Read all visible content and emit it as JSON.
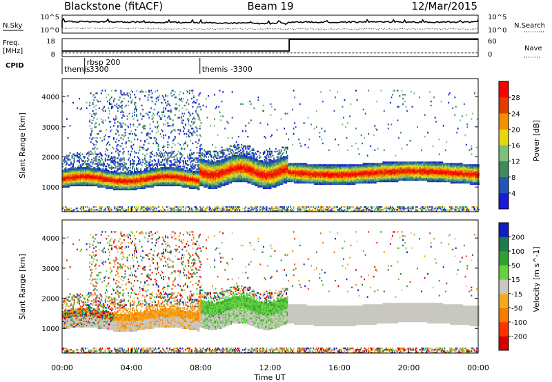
{
  "header": {
    "station": "Blackstone (fitACF)",
    "beam": "Beam 19",
    "date": "12/Mar/2015"
  },
  "nsky_panel": {
    "left_label": "N.Sky",
    "right_label": "N.Search",
    "left_ticks": [
      "10^5",
      "10^0"
    ],
    "right_ticks": [
      "10^5",
      "10^0"
    ]
  },
  "freq_panel": {
    "left_label_1": "Freq.",
    "left_label_2": "[MHz]",
    "right_label": "Nave",
    "left_ticks": [
      "18",
      "8"
    ],
    "right_ticks": [
      "60",
      "0"
    ],
    "freq_value_mhz": 10,
    "freq_change_hour": 13.1
  },
  "cpid": {
    "label": "CPID",
    "segments": [
      {
        "start_hour": 0.0,
        "end_hour": 1.3,
        "text": "themis"
      },
      {
        "start_hour": 1.3,
        "end_hour": 7.95,
        "text": "rbsp 200",
        "text2": "-3300"
      },
      {
        "start_hour": 7.95,
        "end_hour": 24.0,
        "text": "themis -3300"
      }
    ]
  },
  "chart_data": [
    {
      "type": "heatmap",
      "name": "power",
      "ylabel": "Slant Range [km]",
      "xlabel": "",
      "ylim": [
        180,
        4600
      ],
      "y_ticks": [
        1000,
        2000,
        3000,
        4000
      ],
      "colorbar_label": "Power [dB]",
      "colorbar_ticks": [
        "4",
        "8",
        "12",
        "16",
        "20",
        "24",
        "28"
      ],
      "colorbar_colors": [
        "#1a1ad8",
        "#2255b4",
        "#3e8a5a",
        "#7cc07c",
        "#e6d70e",
        "#f39000",
        "#e23c00",
        "#ff0000"
      ],
      "range_bands": [
        {
          "start_hour": 0.0,
          "end_hour": 7.9,
          "center_km": 1300,
          "width_km": 500
        },
        {
          "start_hour": 7.9,
          "end_hour": 13.0,
          "center_km": 1500,
          "width_km": 800
        },
        {
          "start_hour": 13.0,
          "end_hour": 24.0,
          "center_km": 1500,
          "width_km": 700
        }
      ]
    },
    {
      "type": "heatmap",
      "name": "velocity",
      "ylabel": "Slant Range [km]",
      "xlabel": "Time UT",
      "ylim": [
        180,
        4600
      ],
      "y_ticks": [
        1000,
        2000,
        3000,
        4000
      ],
      "x_ticks": [
        "00:00",
        "04:00",
        "08:00",
        "12:00",
        "16:00",
        "20:00",
        "00:00"
      ],
      "x_tick_hours": [
        0,
        4,
        8,
        12,
        16,
        20,
        24
      ],
      "colorbar_label": "Velocity [m s^-1]",
      "colorbar_ticks": [
        "200",
        "100",
        "50",
        "15",
        "-15",
        "-50",
        "-100",
        "-200"
      ],
      "colorbar_colors": [
        "#1020c0",
        "#1f7a4d",
        "#2fa030",
        "#66d040",
        "#c8c8c0",
        "#f6a820",
        "#f57d00",
        "#ff3300",
        "#d60000"
      ],
      "ground_scatter_color": "#c8c8c0"
    }
  ]
}
